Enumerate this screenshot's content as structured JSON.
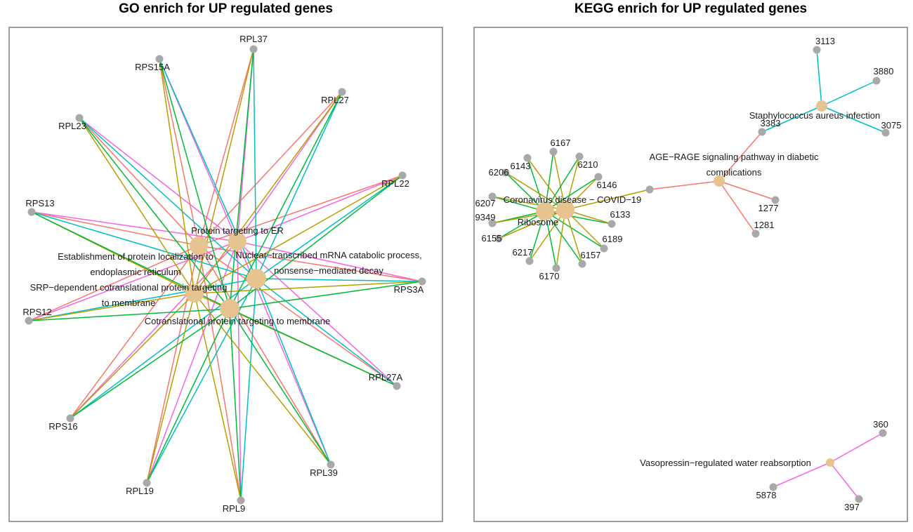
{
  "colors": {
    "term_node": "#e6c38f",
    "gene_node": "#a9a9a9",
    "frame": "#7f7f7f",
    "edge_palette": [
      "#f8766d",
      "#b79f00",
      "#00ba38",
      "#00bfc4",
      "#619cff",
      "#f564e3"
    ]
  },
  "left_panel": {
    "title": "GO enrich for UP regulated genes",
    "terms": [
      {
        "id": "t_er",
        "label": "Protein targeting to ER",
        "color": "#f564e3"
      },
      {
        "id": "t_loc",
        "label": "Establishment of protein localization to\nendoplasmic reticulum",
        "color": "#f8766d"
      },
      {
        "id": "t_nmd",
        "label": "Nuclear−transcribed mRNA catabolic process,\nnonsense−mediated decay",
        "color": "#00bfc4"
      },
      {
        "id": "t_srp",
        "label": "SRP−dependent cotranslational protein targeting\nto membrane",
        "color": "#b79f00"
      },
      {
        "id": "t_cot",
        "label": "Cotranslational protein targeting to membrane",
        "color": "#00ba38"
      }
    ],
    "genes": [
      "RPL37",
      "RPS15A",
      "RPL27",
      "RPL23",
      "RPL22",
      "RPS13",
      "RPS3A",
      "RPS12",
      "RPL27A",
      "RPS16",
      "RPL19",
      "RPL9",
      "RPL39"
    ]
  },
  "right_panel": {
    "title": "KEGG enrich for UP regulated genes",
    "terms": [
      {
        "id": "k_cov",
        "label": "Coronavirus disease − COVID−19",
        "color": "#b79f00"
      },
      {
        "id": "k_rib",
        "label": "Ribosome",
        "color": "#00ba38"
      },
      {
        "id": "k_age",
        "label": "AGE−RAGE signaling pathway in diabetic\ncomplications",
        "color": "#f8766d"
      },
      {
        "id": "k_sta",
        "label": "Staphylococcus aureus infection",
        "color": "#00bfc4"
      },
      {
        "id": "k_vas",
        "label": "Vasopressin−regulated water reabsorption",
        "color": "#f564e3"
      }
    ],
    "genes": [
      "3113",
      "3880",
      "3383",
      "3075",
      "6167",
      "6143",
      "6210",
      "6206",
      "6146",
      "6207",
      "9349",
      "6133",
      "6155",
      "6189",
      "6217",
      "6157",
      "6170",
      "1277",
      "1281",
      "360",
      "5878",
      "397"
    ]
  }
}
